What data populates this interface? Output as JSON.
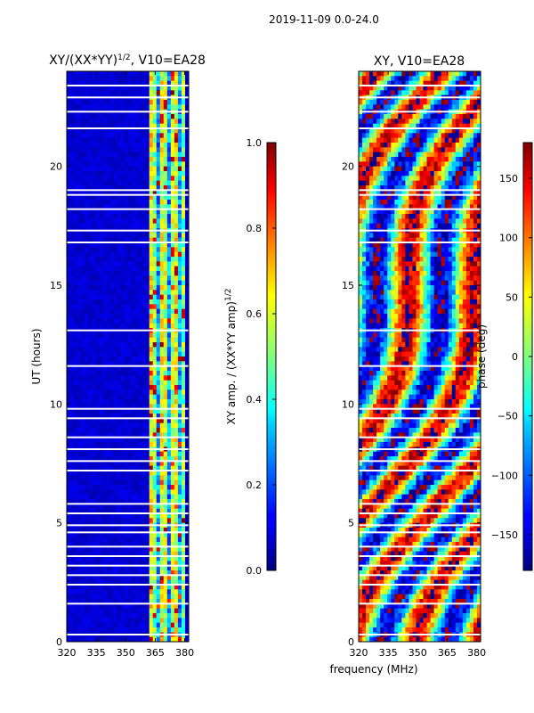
{
  "figure": {
    "suptitle": "2019-11-09 0.0-24.0",
    "xlabel": "frequency (MHz)"
  },
  "chart_data": [
    {
      "type": "heatmap",
      "title_main": "XY/(XX*YY)",
      "title_sup": "1/2",
      "title_rest": ", V10=EA28",
      "ylabel": "UT (hours)",
      "xlim": [
        320,
        382
      ],
      "ylim": [
        0,
        24
      ],
      "x_ticks": [
        320,
        335,
        350,
        365,
        380
      ],
      "y_ticks": [
        0,
        5,
        10,
        15,
        20
      ],
      "colorbar": {
        "label_main": "XY amp. / (XX*YY amp)",
        "label_sup": "1/2",
        "range": [
          0.0,
          1.0
        ],
        "ticks": [
          "0.0",
          "0.2",
          "0.4",
          "0.6",
          "0.8",
          "1.0"
        ],
        "tick_values": [
          0.0,
          0.2,
          0.4,
          0.6,
          0.8,
          1.0
        ]
      },
      "gaps_ut_hours": [
        0.3,
        1.6,
        2.4,
        2.8,
        3.2,
        3.6,
        4.0,
        4.6,
        4.9,
        5.4,
        5.8,
        7.2,
        7.6,
        8.1,
        8.6,
        9.4,
        9.8,
        11.6,
        13.1,
        16.8,
        17.3,
        18.2,
        18.8,
        19.0,
        21.6,
        22.3,
        22.9,
        23.4
      ]
    },
    {
      "type": "heatmap",
      "title_main": "XY, V10=EA28",
      "xlim": [
        320,
        382
      ],
      "ylim": [
        0,
        24
      ],
      "x_ticks": [
        320,
        335,
        350,
        365,
        380
      ],
      "y_ticks": [
        0,
        5,
        10,
        15,
        20
      ],
      "colorbar": {
        "label_main": "phase (deg)",
        "range": [
          -180,
          180
        ],
        "ticks": [
          "−150",
          "−100",
          "−50",
          "0",
          "50",
          "100",
          "150"
        ],
        "tick_values": [
          -150,
          -100,
          -50,
          0,
          50,
          100,
          150
        ]
      },
      "gaps_ut_hours": [
        0.3,
        1.6,
        2.4,
        2.8,
        3.2,
        3.6,
        4.0,
        4.6,
        4.9,
        5.4,
        5.8,
        7.2,
        7.6,
        8.1,
        8.6,
        9.4,
        9.8,
        11.6,
        13.1,
        16.8,
        17.3,
        18.2,
        18.8,
        19.0,
        21.6,
        22.3,
        22.9,
        23.4
      ]
    }
  ]
}
